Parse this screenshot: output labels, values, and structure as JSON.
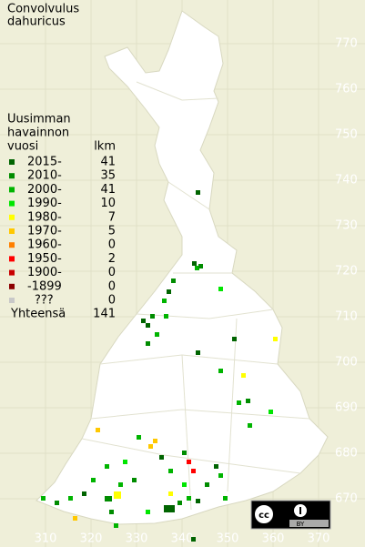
{
  "header": {
    "title_lines": [
      "Convolvulus",
      "dahuricus"
    ]
  },
  "legend": {
    "heading_lines": [
      "Uusimman",
      "havainnon",
      "vuosi"
    ],
    "count_heading": "lkm",
    "rows": [
      {
        "label": "2015-",
        "count": 41,
        "color": "#006400"
      },
      {
        "label": "2010-",
        "count": 35,
        "color": "#008c00"
      },
      {
        "label": "2000-",
        "count": 41,
        "color": "#00b400"
      },
      {
        "label": "1990-",
        "count": 10,
        "color": "#00e600"
      },
      {
        "label": "1980-",
        "count": 7,
        "color": "#ffff00"
      },
      {
        "label": "1970-",
        "count": 5,
        "color": "#ffc800"
      },
      {
        "label": "1960-",
        "count": 0,
        "color": "#ff8000"
      },
      {
        "label": "1950-",
        "count": 2,
        "color": "#ff0000"
      },
      {
        "label": "1900-",
        "count": 0,
        "color": "#c80000"
      },
      {
        "label": "-1899",
        "count": 0,
        "color": "#8c0000"
      },
      {
        "label": "???",
        "count": 0,
        "color": "#c8c8c8"
      }
    ],
    "total_label": "Yhteensä",
    "total": 141
  },
  "grid": {
    "north": [
      770,
      760,
      750,
      740,
      730,
      720,
      710,
      700,
      690,
      680,
      670
    ],
    "east": [
      310,
      320,
      330,
      340,
      350,
      360,
      370
    ]
  },
  "license": {
    "label": "BY"
  }
}
